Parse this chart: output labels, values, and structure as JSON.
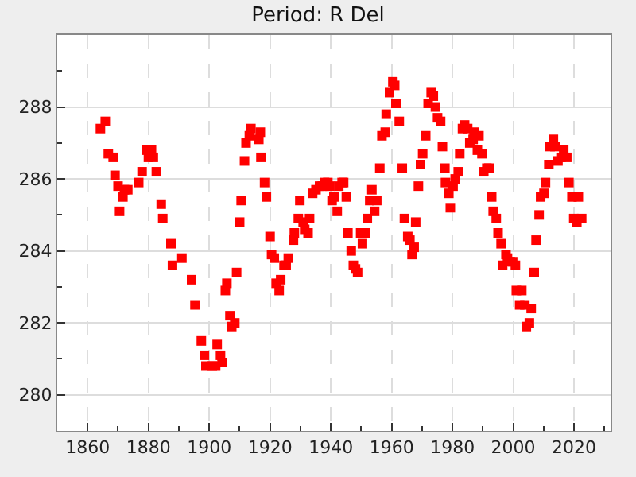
{
  "chart_data": {
    "type": "scatter",
    "title": "Period: R Del",
    "x": [
      1864.2,
      1865.8,
      1866.8,
      1868.4,
      1869,
      1870,
      1870.5,
      1871.6,
      1872.1,
      1873.2,
      1876.8,
      1877.9,
      1879.5,
      1880,
      1881,
      1881.6,
      1882.6,
      1884.2,
      1884.7,
      1887.4,
      1887.9,
      1891,
      1894.2,
      1895.3,
      1897.4,
      1898.4,
      1898.9,
      1901,
      1902.1,
      1902.6,
      1903.7,
      1904.2,
      1905.3,
      1905.8,
      1906.8,
      1907.4,
      1908.4,
      1909,
      1910,
      1910.5,
      1911.6,
      1912.1,
      1913.2,
      1913.7,
      1916.3,
      1916.8,
      1917,
      1918.2,
      1918.8,
      1920,
      1920.5,
      1921.4,
      1922,
      1923,
      1923.5,
      1924.6,
      1925.3,
      1926,
      1927.7,
      1928,
      1929.3,
      1929.8,
      1930.9,
      1931.4,
      1932.5,
      1933,
      1934,
      1935.1,
      1936.3,
      1937.2,
      1937.9,
      1939,
      1939.6,
      1940.4,
      1941,
      1942.1,
      1942.6,
      1943.7,
      1944.2,
      1945.1,
      1945.6,
      1946.7,
      1947.4,
      1948.1,
      1948.8,
      1949.8,
      1950.4,
      1951.2,
      1952,
      1952.8,
      1953.5,
      1954.4,
      1955.1,
      1956.1,
      1956.8,
      1957.9,
      1958.2,
      1959.3,
      1960.4,
      1961,
      1961.4,
      1962.5,
      1963.5,
      1964.2,
      1965.3,
      1966,
      1966.7,
      1967.4,
      1967.9,
      1968.8,
      1969.5,
      1970.2,
      1971.2,
      1972,
      1973,
      1973.7,
      1974.4,
      1975.1,
      1976.1,
      1976.7,
      1977.5,
      1977.7,
      1978.8,
      1979.3,
      1980.2,
      1980.9,
      1981.9,
      1982.4,
      1983.3,
      1984,
      1985,
      1985.7,
      1986.8,
      1987.1,
      1988.2,
      1988.7,
      1989.7,
      1990.3,
      1991.3,
      1992,
      1992.9,
      1993.4,
      1994.4,
      1995,
      1996,
      1996.5,
      1997.6,
      1998.1,
      1999,
      1999.8,
      2000.7,
      2001,
      2002.1,
      2002.8,
      2003.8,
      2004.3,
      2005.3,
      2005.9,
      2006.9,
      2007.5,
      2008.5,
      2009,
      2010.1,
      2010.6,
      2011.7,
      2012.1,
      2013.2,
      2013.7,
      2014.7,
      2015.7,
      2016.6,
      2017.6,
      2018.3,
      2019.3,
      2019.9,
      2020.9,
      2021.4,
      2022.5
    ],
    "values": [
      287.4,
      287.6,
      286.7,
      286.6,
      286.1,
      285.8,
      285.1,
      285.5,
      285.7,
      285.7,
      285.9,
      286.2,
      286.8,
      286.6,
      286.8,
      286.6,
      286.2,
      285.3,
      284.9,
      284.2,
      283.6,
      283.8,
      283.2,
      282.5,
      281.5,
      281.1,
      280.8,
      280.8,
      280.8,
      281.4,
      281.1,
      280.9,
      282.9,
      283.1,
      282.2,
      281.9,
      282.0,
      283.4,
      284.8,
      285.4,
      286.5,
      287.0,
      287.2,
      287.4,
      287.1,
      287.3,
      286.6,
      285.9,
      285.5,
      284.4,
      283.9,
      283.8,
      283.1,
      282.9,
      283.2,
      283.6,
      283.6,
      283.8,
      284.3,
      284.5,
      284.9,
      285.4,
      284.8,
      284.6,
      284.5,
      284.9,
      285.6,
      285.7,
      285.8,
      285.8,
      285.9,
      285.9,
      285.8,
      285.4,
      285.5,
      285.1,
      285.8,
      285.9,
      285.9,
      285.5,
      284.5,
      284.0,
      283.6,
      283.5,
      283.4,
      284.5,
      284.2,
      284.5,
      284.9,
      285.4,
      285.7,
      285.1,
      285.4,
      286.3,
      287.2,
      287.3,
      287.8,
      288.4,
      288.7,
      288.6,
      288.1,
      287.6,
      286.3,
      284.9,
      284.4,
      284.3,
      283.9,
      284.1,
      284.8,
      285.8,
      286.4,
      286.7,
      287.2,
      288.1,
      288.4,
      288.3,
      288.0,
      287.7,
      287.6,
      286.9,
      286.3,
      285.9,
      285.6,
      285.2,
      285.8,
      286.0,
      286.2,
      286.7,
      287.4,
      287.5,
      287.4,
      287.0,
      287.1,
      287.3,
      286.8,
      287.2,
      286.7,
      286.2,
      286.3,
      286.3,
      285.5,
      285.1,
      284.9,
      284.5,
      284.2,
      283.6,
      283.9,
      283.8,
      283.7,
      283.7,
      283.6,
      282.9,
      282.5,
      282.9,
      282.5,
      281.9,
      282.0,
      282.4,
      283.4,
      284.3,
      285.0,
      285.5,
      285.6,
      285.9,
      286.4,
      286.9,
      287.1,
      286.9,
      286.5,
      286.6,
      286.8,
      286.6,
      285.9,
      285.5,
      284.9,
      284.8,
      285.5,
      284.9
    ],
    "color": "#ff0000",
    "marker": "square",
    "xlim": [
      1850,
      2032
    ],
    "xticks": [
      1860,
      1880,
      1900,
      1920,
      1940,
      1960,
      1980,
      2000,
      2020
    ],
    "ylim": [
      279,
      290
    ],
    "yticks": [
      280,
      282,
      284,
      286,
      288
    ],
    "grid": true
  }
}
